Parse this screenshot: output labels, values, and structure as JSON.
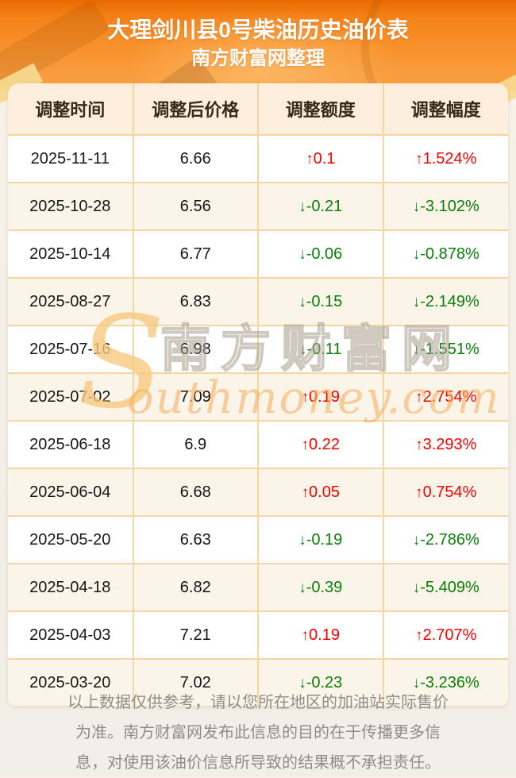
{
  "page": {
    "title_line1": "大理剑川县0号柴油历史油价表",
    "title_line2": "南方财富网整理"
  },
  "table": {
    "headers": [
      "调整时间",
      "调整后价格",
      "调整额度",
      "调整幅度"
    ],
    "up_arrow": "↑",
    "down_arrow": "↓",
    "rows": [
      {
        "date": "2025-11-11",
        "price": "6.66",
        "change": "0.1",
        "rate": "1.524%",
        "direction": "up"
      },
      {
        "date": "2025-10-28",
        "price": "6.56",
        "change": "-0.21",
        "rate": "-3.102%",
        "direction": "down"
      },
      {
        "date": "2025-10-14",
        "price": "6.77",
        "change": "-0.06",
        "rate": "-0.878%",
        "direction": "down"
      },
      {
        "date": "2025-08-27",
        "price": "6.83",
        "change": "-0.15",
        "rate": "-2.149%",
        "direction": "down"
      },
      {
        "date": "2025-07-16",
        "price": "6.98",
        "change": "-0.11",
        "rate": "-1.551%",
        "direction": "down"
      },
      {
        "date": "2025-07-02",
        "price": "7.09",
        "change": "0.19",
        "rate": "2.754%",
        "direction": "up"
      },
      {
        "date": "2025-06-18",
        "price": "6.9",
        "change": "0.22",
        "rate": "3.293%",
        "direction": "up"
      },
      {
        "date": "2025-06-04",
        "price": "6.68",
        "change": "0.05",
        "rate": "0.754%",
        "direction": "up"
      },
      {
        "date": "2025-05-20",
        "price": "6.63",
        "change": "-0.19",
        "rate": "-2.786%",
        "direction": "down"
      },
      {
        "date": "2025-04-18",
        "price": "6.82",
        "change": "-0.39",
        "rate": "-5.409%",
        "direction": "down"
      },
      {
        "date": "2025-04-03",
        "price": "7.21",
        "change": "0.19",
        "rate": "2.707%",
        "direction": "up"
      },
      {
        "date": "2025-03-20",
        "price": "7.02",
        "change": "-0.23",
        "rate": "-3.236%",
        "direction": "down"
      }
    ]
  },
  "watermark": {
    "s_glyph": "S",
    "cjk": "南方财富网",
    "domain_text": "outhmoney.com"
  },
  "footer": {
    "lines": [
      "以上数据仅供参考，请以您所在地区的加油站实际售价",
      "为准。南方财富网发布此信息的目的在于传播更多信",
      "息，对使用该油价信息所导致的结果概不承担责任。"
    ]
  },
  "colors": {
    "up": "#fa0000",
    "down": "#088008",
    "banner_orange": "#f5831a",
    "header_bg": "#fdeedd",
    "table_border": "#f5d5a2",
    "stripe_bg": "#fbf4e8"
  }
}
